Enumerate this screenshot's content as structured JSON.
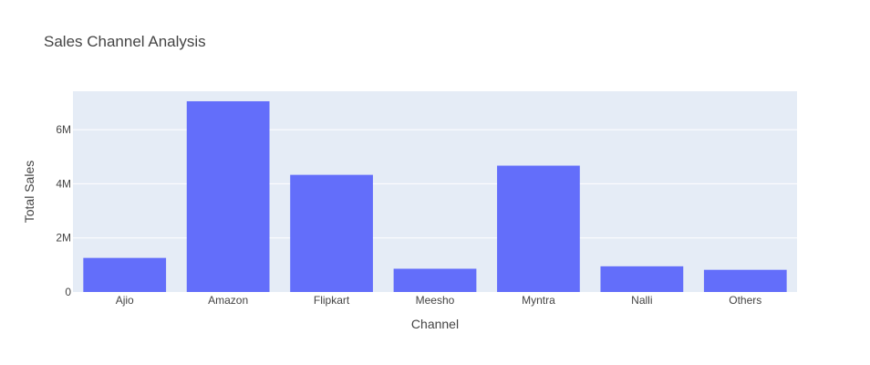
{
  "chart_data": {
    "type": "bar",
    "title": "Sales Channel Analysis",
    "xlabel": "Channel",
    "ylabel": "Total Sales",
    "categories": [
      "Ajio",
      "Amazon",
      "Flipkart",
      "Meesho",
      "Myntra",
      "Nalli",
      "Others"
    ],
    "values": [
      1260000,
      7050000,
      4330000,
      860000,
      4670000,
      950000,
      820000
    ],
    "ylim": [
      0,
      7420000
    ],
    "yticks": [
      0,
      2000000,
      4000000,
      6000000
    ],
    "ytick_labels": [
      "0",
      "2M",
      "4M",
      "6M"
    ],
    "grid": true,
    "legend": "none",
    "colors": {
      "bar": "#636efa",
      "plot_background": "#e5ecf6",
      "gridline": "#ffffff",
      "text": "#444444"
    }
  }
}
